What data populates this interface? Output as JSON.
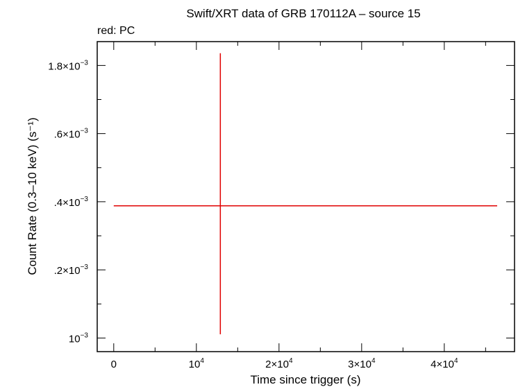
{
  "chart_data": {
    "type": "scatter",
    "title": "Swift/XRT data of GRB 170112A – source 15",
    "subtitle": "red: PC",
    "xlabel": "Time since trigger (s)",
    "ylabel": "Count Rate (0.3–10 keV) (s⁻¹)",
    "xlim": [
      -2000,
      48500
    ],
    "ylim": [
      0.00096,
      0.00187
    ],
    "x_ticks": [
      {
        "value": 0,
        "label": "0",
        "sup": ""
      },
      {
        "value": 10000,
        "label": "10",
        "sup": "4"
      },
      {
        "value": 20000,
        "label": "2×10",
        "sup": "4"
      },
      {
        "value": 30000,
        "label": "3×10",
        "sup": "4"
      },
      {
        "value": 40000,
        "label": "4×10",
        "sup": "4"
      }
    ],
    "y_ticks": [
      {
        "value": 0.001,
        "label": "10",
        "sup": "−3"
      },
      {
        "value": 0.0012,
        "label": ".2×10",
        "sup": "−3"
      },
      {
        "value": 0.0014,
        "label": ".4×10",
        "sup": "−3"
      },
      {
        "value": 0.0016,
        "label": ".6×10",
        "sup": "−3"
      },
      {
        "value": 0.0018,
        "label": "1.8×10",
        "sup": "−3"
      }
    ],
    "series": [
      {
        "color": "#e00000",
        "points": [
          {
            "x": 12900,
            "x_lo": 0,
            "x_hi": 46400,
            "y": 0.001388,
            "y_lo": 0.001011,
            "y_hi": 0.001836
          }
        ]
      }
    ],
    "grid": false
  }
}
